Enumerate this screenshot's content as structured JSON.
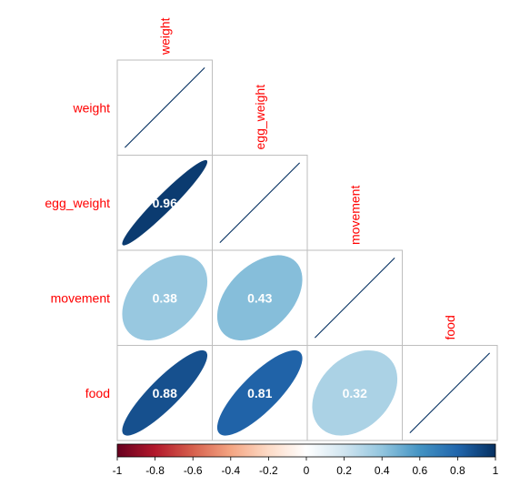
{
  "chart_data": {
    "type": "heatmap",
    "subtype": "correlation-matrix-ellipse-lower-triangle",
    "variables": [
      "weight",
      "egg_weight",
      "movement",
      "food"
    ],
    "matrix": [
      [
        1.0,
        0.96,
        0.38,
        0.88
      ],
      [
        0.96,
        1.0,
        0.43,
        0.81
      ],
      [
        0.38,
        0.43,
        1.0,
        0.32
      ],
      [
        0.88,
        0.81,
        0.32,
        1.0
      ]
    ],
    "lower_labels": [
      {
        "row": 1,
        "col": 0,
        "label": "0.96"
      },
      {
        "row": 2,
        "col": 0,
        "label": "0.38"
      },
      {
        "row": 2,
        "col": 1,
        "label": "0.43"
      },
      {
        "row": 3,
        "col": 0,
        "label": "0.88"
      },
      {
        "row": 3,
        "col": 1,
        "label": "0.81"
      },
      {
        "row": 3,
        "col": 2,
        "label": "0.32"
      }
    ],
    "colorbar": {
      "range": [
        -1,
        1
      ],
      "ticks": [
        -1,
        -0.8,
        -0.6,
        -0.4,
        -0.2,
        0,
        0.2,
        0.4,
        0.6,
        0.8,
        1
      ],
      "tick_labels": [
        "-1",
        "-0.8",
        "-0.6",
        "-0.4",
        "-0.2",
        "0",
        "0.2",
        "0.4",
        "0.6",
        "0.8",
        "1"
      ],
      "palette": [
        "#67001F",
        "#B2182B",
        "#D6604D",
        "#F4A582",
        "#FDDBC7",
        "#FFFFFF",
        "#D1E5F0",
        "#92C5DE",
        "#4393C3",
        "#2166AC",
        "#053061"
      ]
    },
    "label_color": "#FF0000",
    "cell_value_color": "#FFFFFF",
    "cell_border_color": "#BEBEBE",
    "diagonal_line_color": "#053061",
    "grid": false,
    "legend_position": "bottom"
  }
}
